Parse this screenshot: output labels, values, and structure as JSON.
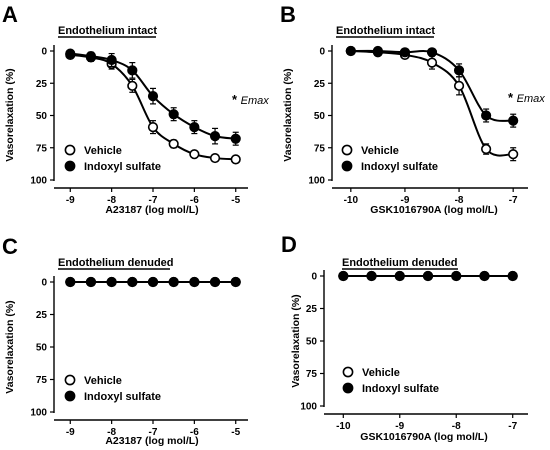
{
  "chart_data": [
    {
      "panel": "A",
      "type": "line",
      "title": "Endothelium intact",
      "xlabel": "A23187 (log mol/L)",
      "ylabel": "Vasorelaxation (%)",
      "xlim": [
        -9.2,
        -4.8
      ],
      "ylim": [
        0,
        100
      ],
      "y_inverted": true,
      "x_ticks": [
        -9,
        -8,
        -7,
        -6,
        -5
      ],
      "y_ticks": [
        0,
        25,
        50,
        75,
        100
      ],
      "annotation": {
        "star": "*",
        "text": "Emax"
      },
      "legend_position": "bottom-left",
      "series": [
        {
          "name": "Vehicle",
          "marker": "open-circle",
          "x": [
            -9,
            -8.5,
            -8,
            -7.5,
            -7,
            -6.5,
            -6,
            -5.5,
            -5
          ],
          "y": [
            3,
            5,
            10,
            27,
            59,
            72,
            80,
            83,
            84
          ],
          "err": [
            2,
            3,
            4,
            5,
            5,
            3,
            2,
            2,
            2
          ]
        },
        {
          "name": "Indoxyl sulfate",
          "marker": "filled-circle",
          "x": [
            -9,
            -8.5,
            -8,
            -7.5,
            -7,
            -6.5,
            -6,
            -5.5,
            -5
          ],
          "y": [
            2,
            4,
            7,
            15,
            35,
            49,
            59,
            66,
            68
          ],
          "err": [
            2,
            3,
            5,
            6,
            6,
            5,
            5,
            6,
            5
          ]
        }
      ]
    },
    {
      "panel": "B",
      "type": "line",
      "title": "Endothelium intact",
      "xlabel": "GSK1016790A (log mol/L)",
      "ylabel": "Vasorelaxation (%)",
      "xlim": [
        -10.2,
        -6.8
      ],
      "ylim": [
        0,
        100
      ],
      "y_inverted": true,
      "x_ticks": [
        -10,
        -9,
        -8,
        -7
      ],
      "y_ticks": [
        0,
        25,
        50,
        75,
        100
      ],
      "annotation": {
        "star": "*",
        "text": "Emax"
      },
      "legend_position": "bottom-left",
      "series": [
        {
          "name": "Vehicle",
          "marker": "open-circle",
          "x": [
            -10,
            -9.5,
            -9,
            -8.5,
            -8,
            -7.5,
            -7
          ],
          "y": [
            0,
            1,
            3,
            9,
            27,
            76,
            80
          ],
          "err": [
            1,
            1,
            2,
            5,
            7,
            4,
            5
          ]
        },
        {
          "name": "Indoxyl sulfate",
          "marker": "filled-circle",
          "x": [
            -10,
            -9.5,
            -9,
            -8.5,
            -8,
            -7.5,
            -7
          ],
          "y": [
            0,
            0,
            1,
            1,
            15,
            50,
            54
          ],
          "err": [
            1,
            1,
            1,
            2,
            5,
            5,
            5
          ]
        }
      ]
    },
    {
      "panel": "C",
      "type": "line",
      "title": "Endothelium denuded",
      "xlabel": "A23187 (log mol/L)",
      "ylabel": "Vasorelaxation (%)",
      "xlim": [
        -9.2,
        -4.8
      ],
      "ylim": [
        0,
        100
      ],
      "y_inverted": true,
      "x_ticks": [
        -9,
        -8,
        -7,
        -6,
        -5
      ],
      "y_ticks": [
        0,
        25,
        50,
        75,
        100
      ],
      "legend_position": "bottom-left",
      "series": [
        {
          "name": "Vehicle",
          "marker": "open-circle",
          "x": [
            -9,
            -8.5,
            -8,
            -7.5,
            -7,
            -6.5,
            -6,
            -5.5,
            -5
          ],
          "y": [
            0,
            0,
            0,
            0,
            0,
            0,
            0,
            0,
            0
          ]
        },
        {
          "name": "Indoxyl sulfate",
          "marker": "filled-circle",
          "x": [
            -9,
            -8.5,
            -8,
            -7.5,
            -7,
            -6.5,
            -6,
            -5.5,
            -5
          ],
          "y": [
            0,
            0,
            0,
            0,
            0,
            0,
            0,
            0,
            0
          ]
        }
      ]
    },
    {
      "panel": "D",
      "type": "line",
      "title": "Endothelium denuded",
      "xlabel": "GSK1016790A (log mol/L)",
      "ylabel": "Vasorelaxation (%)",
      "xlim": [
        -10.2,
        -6.8
      ],
      "ylim": [
        0,
        100
      ],
      "y_inverted": true,
      "x_ticks": [
        -10,
        -9,
        -8,
        -7
      ],
      "y_ticks": [
        0,
        25,
        50,
        75,
        100
      ],
      "legend_position": "bottom-left",
      "series": [
        {
          "name": "Vehicle",
          "marker": "open-circle",
          "x": [
            -10,
            -9.5,
            -9,
            -8.5,
            -8,
            -7.5,
            -7
          ],
          "y": [
            0,
            0,
            0,
            0,
            0,
            0,
            0
          ]
        },
        {
          "name": "Indoxyl sulfate",
          "marker": "filled-circle",
          "x": [
            -10,
            -9.5,
            -9,
            -8.5,
            -8,
            -7.5,
            -7
          ],
          "y": [
            0,
            0,
            0,
            0,
            0,
            0,
            0
          ]
        }
      ]
    }
  ]
}
